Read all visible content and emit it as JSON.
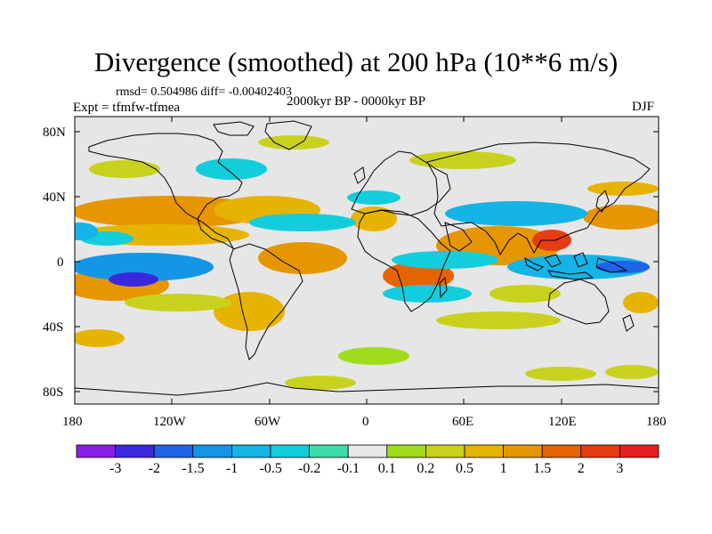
{
  "title": "Divergence (smoothed) at 200 hPa (10**6 m/s)",
  "stats": "rmsd= 0.504986 diff= -0.00402403",
  "experiment": "Expt = tfmfw-tfmea",
  "period": "2000kyr BP - 0000kyr BP",
  "season": "DJF",
  "lat_labels": [
    "80N",
    "40N",
    "0",
    "40S",
    "80S"
  ],
  "lon_labels": [
    "180",
    "120W",
    "60W",
    "0",
    "60E",
    "120E",
    "180"
  ],
  "colorbar": {
    "labels": [
      "-3",
      "-2",
      "-1.5",
      "-1",
      "-0.5",
      "-0.2",
      "-0.1",
      "0.1",
      "0.2",
      "0.5",
      "1",
      "1.5",
      "2",
      "3"
    ],
    "colors": [
      "#8a1ee6",
      "#3c28dc",
      "#1e64e6",
      "#1496e6",
      "#14b4e6",
      "#14cddc",
      "#3cdcaa",
      "#e6e6e6",
      "#a0dc1e",
      "#c8d21e",
      "#e6b400",
      "#e69600",
      "#e66400",
      "#e63c14",
      "#e61e1e"
    ]
  },
  "colors": {
    "background": "#e6e6e6",
    "coast": "#000000"
  }
}
